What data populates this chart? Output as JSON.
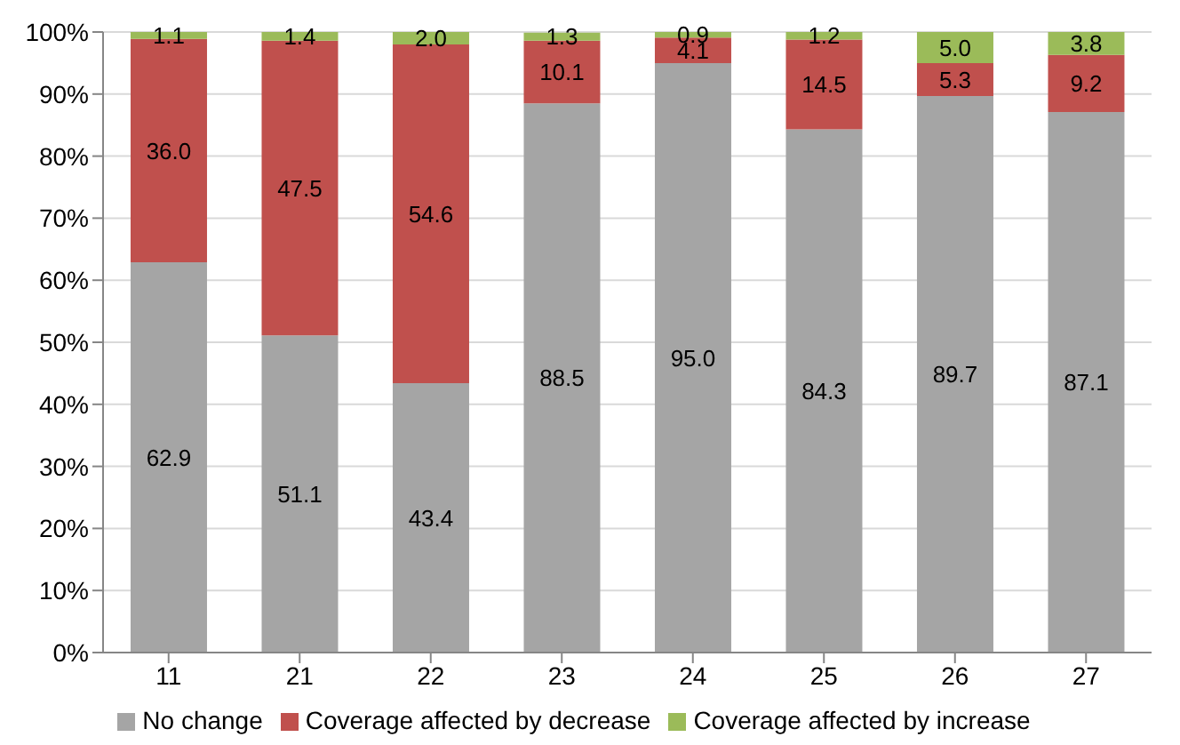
{
  "chart_data": {
    "type": "bar",
    "stacked": true,
    "categories": [
      "11",
      "21",
      "22",
      "23",
      "24",
      "25",
      "26",
      "27"
    ],
    "series": [
      {
        "name": "No change",
        "color": "#a5a5a5",
        "values": [
          62.9,
          51.1,
          43.4,
          88.5,
          95.0,
          84.3,
          89.7,
          87.1
        ],
        "value_labels": [
          "62.9",
          "51.1",
          "43.4",
          "88.5",
          "95.0",
          "84.3",
          "89.7",
          "87.1"
        ]
      },
      {
        "name": "Coverage affected by decrease",
        "color": "#c0504d",
        "values": [
          36.0,
          47.5,
          54.6,
          10.1,
          4.1,
          14.5,
          5.3,
          9.2
        ],
        "value_labels": [
          "36.0",
          "47.5",
          "54.6",
          "10.1",
          "4.1",
          "14.5",
          "5.3",
          "9.2"
        ]
      },
      {
        "name": "Coverage affected by increase",
        "color": "#9bbb59",
        "values": [
          1.1,
          1.4,
          2.0,
          1.3,
          0.9,
          1.2,
          5.0,
          3.8
        ],
        "value_labels": [
          "1.1",
          "1.4",
          "2.0",
          "1.3",
          "0.9",
          "1.2",
          "5.0",
          "3.8"
        ]
      }
    ],
    "ylim": [
      0,
      100
    ],
    "yticks": [
      {
        "value": 0,
        "label": "0%"
      },
      {
        "value": 10,
        "label": "10%"
      },
      {
        "value": 20,
        "label": "20%"
      },
      {
        "value": 30,
        "label": "30%"
      },
      {
        "value": 40,
        "label": "40%"
      },
      {
        "value": 50,
        "label": "50%"
      },
      {
        "value": 60,
        "label": "60%"
      },
      {
        "value": 70,
        "label": "70%"
      },
      {
        "value": 80,
        "label": "80%"
      },
      {
        "value": 90,
        "label": "90%"
      },
      {
        "value": 100,
        "label": "100%"
      }
    ],
    "grid": "y",
    "legend": "bottom"
  }
}
